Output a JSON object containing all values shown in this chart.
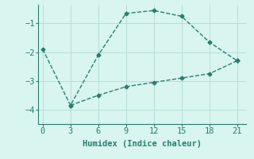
{
  "line1_x": [
    0,
    3,
    6,
    9,
    12,
    15,
    18,
    21
  ],
  "line1_y": [
    -1.9,
    -3.85,
    -2.1,
    -0.65,
    -0.55,
    -0.75,
    -1.65,
    -2.3
  ],
  "line2_x": [
    3,
    6,
    9,
    12,
    15,
    18,
    21
  ],
  "line2_y": [
    -3.85,
    -3.5,
    -3.2,
    -3.05,
    -2.9,
    -2.75,
    -2.3
  ],
  "line_color": "#2a7d6e",
  "bg_color": "#d8f5ef",
  "grid_color": "#b8ddd8",
  "xlabel": "Humidex (Indice chaleur)",
  "xlim": [
    -0.5,
    22
  ],
  "ylim": [
    -4.5,
    -0.35
  ],
  "xticks": [
    0,
    3,
    6,
    9,
    12,
    15,
    18,
    21
  ],
  "yticks": [
    -4,
    -3,
    -2,
    -1
  ],
  "marker": "D",
  "marker_size": 2.5,
  "line_width": 1.0,
  "font_size": 7.5
}
